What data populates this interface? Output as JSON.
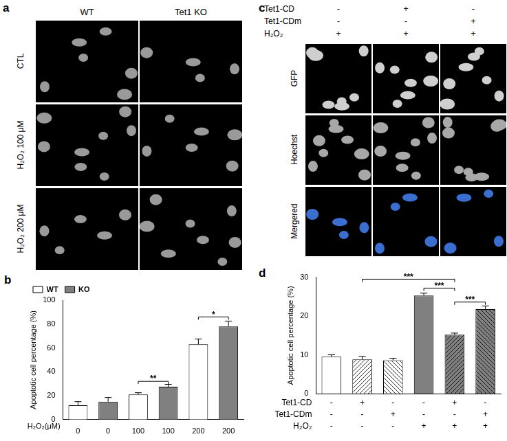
{
  "panels": {
    "a": {
      "letter": "a",
      "columns": [
        "WT",
        "Tet1 KO"
      ],
      "rows": [
        "CTL",
        "H₂O₂ 100 μM",
        "H₂O₂ 200 μM"
      ]
    },
    "c": {
      "letter": "c",
      "conditions": [
        {
          "name": "Tet1-CD",
          "marks": [
            "-",
            "+",
            "-"
          ]
        },
        {
          "name": "Tet1-CDm",
          "marks": [
            "-",
            "-",
            "+"
          ]
        },
        {
          "name": "H₂O₂",
          "marks": [
            "+",
            "+",
            "+"
          ]
        }
      ],
      "rows": [
        "GFP",
        "Hoechst",
        "Mergered"
      ]
    }
  },
  "chart_data": [
    {
      "type": "bar",
      "panel_label": "b",
      "y_label": "Apoptotic cell percentage (%)",
      "x_label": "H₂O₂(μM)",
      "categories": [
        "0",
        "0",
        "100",
        "100",
        "200",
        "200"
      ],
      "series": [
        {
          "name": "WT",
          "color": "#ffffff",
          "values": [
            12,
            null,
            21,
            null,
            63,
            null
          ],
          "errors": [
            3,
            null,
            1.5,
            null,
            4.5,
            null
          ]
        },
        {
          "name": "KO",
          "color": "#808080",
          "values": [
            null,
            15,
            null,
            27.5,
            null,
            78
          ],
          "errors": [
            null,
            3.5,
            null,
            2,
            null,
            4.5
          ]
        }
      ],
      "ylim": [
        0,
        100
      ],
      "yticks": [
        0,
        20,
        40,
        60,
        80,
        100
      ],
      "grid": false,
      "legend": "upper left",
      "annotations": [
        {
          "text": "**",
          "from": 2,
          "to": 3,
          "y": 32
        },
        {
          "text": "*",
          "from": 4,
          "to": 5,
          "y": 86
        }
      ]
    },
    {
      "type": "bar",
      "panel_label": "d",
      "y_label": "Apoptotic cell percentage (%)",
      "categories": [
        null,
        null,
        null,
        null,
        null,
        null
      ],
      "values": [
        9.5,
        8.8,
        8.6,
        25.3,
        15.2,
        21.8
      ],
      "errors": [
        0.5,
        0.8,
        0.5,
        0.6,
        0.4,
        0.8
      ],
      "colors": [
        "#ffffff",
        "#ffffff",
        "#ffffff",
        "#808080",
        "#808080",
        "#808080"
      ],
      "conditions": [
        {
          "name": "Tet1-CD",
          "marks": [
            "-",
            "+",
            "-",
            "-",
            "+",
            "-"
          ]
        },
        {
          "name": "Tet1-CDm",
          "marks": [
            "-",
            "-",
            "+",
            "-",
            "-",
            "+"
          ]
        },
        {
          "name": "H₂O₂",
          "marks": [
            "-",
            "-",
            "-",
            "+",
            "+",
            "+"
          ]
        }
      ],
      "ylim": [
        0,
        30
      ],
      "yticks": [
        0,
        10,
        20,
        30
      ],
      "grid": false,
      "annotations": [
        {
          "text": "***",
          "from": 1,
          "to": 4,
          "y": 29.5
        },
        {
          "text": "***",
          "from": 3,
          "to": 4,
          "y": 27.2
        },
        {
          "text": "***",
          "from": 4,
          "to": 5,
          "y": 23.6
        }
      ]
    }
  ]
}
